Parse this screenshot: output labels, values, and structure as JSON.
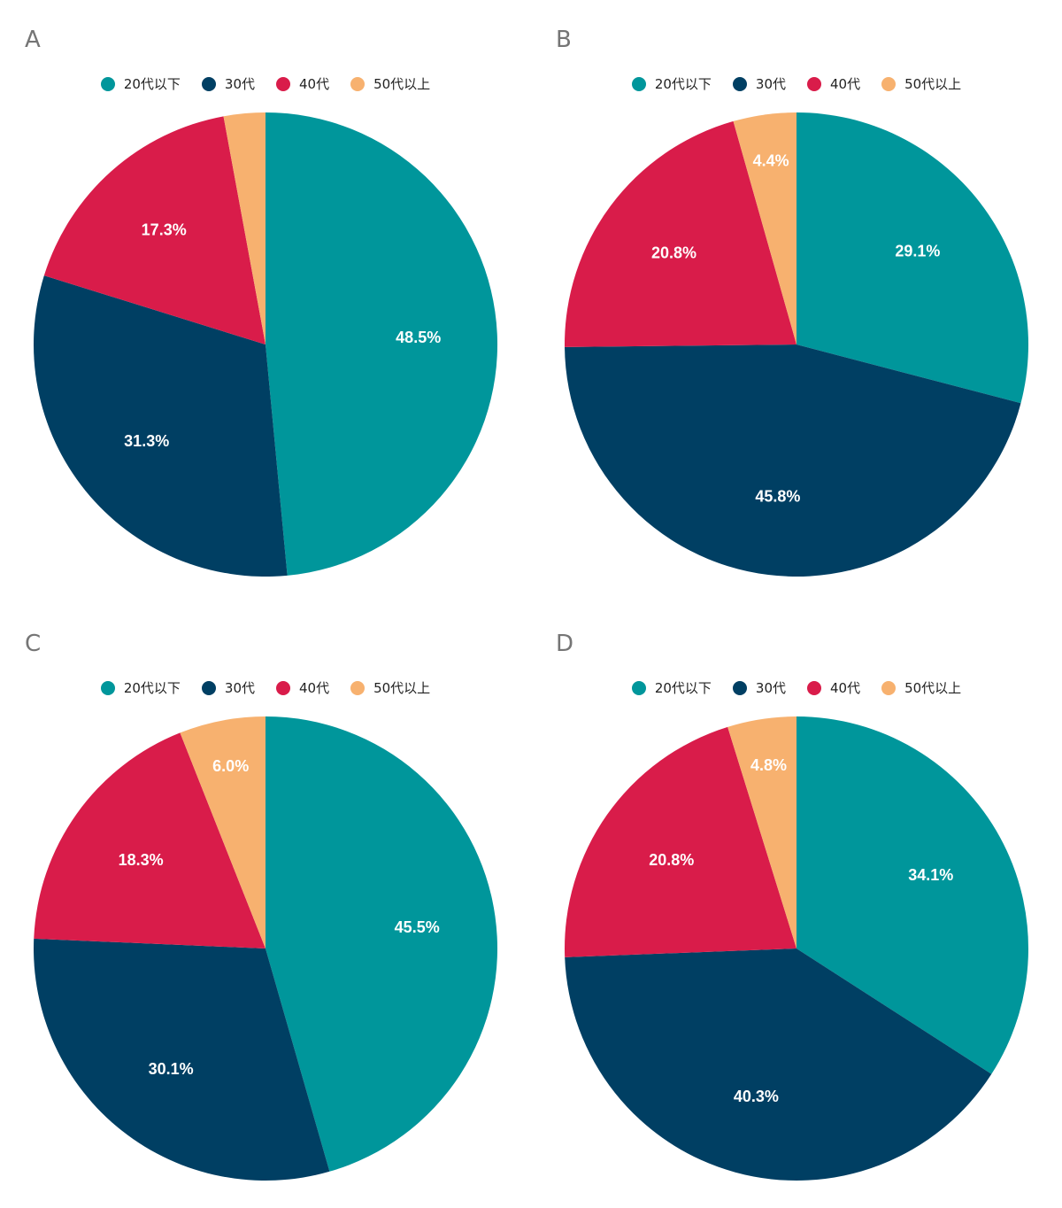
{
  "chart_data": [
    {
      "type": "pie",
      "title": "A",
      "categories": [
        "20代以下",
        "30代",
        "40代",
        "50代以上"
      ],
      "values": [
        48.5,
        31.3,
        17.3,
        2.9
      ],
      "labels": [
        "48.5%",
        "31.3%",
        "17.3%",
        ""
      ],
      "colors": [
        "#00969b",
        "#003f63",
        "#d91c4a",
        "#f7b16f"
      ],
      "legend_position": "top"
    },
    {
      "type": "pie",
      "title": "B",
      "categories": [
        "20代以下",
        "30代",
        "40代",
        "50代以上"
      ],
      "values": [
        29.1,
        45.8,
        20.8,
        4.4
      ],
      "labels": [
        "29.1%",
        "45.8%",
        "20.8%",
        "4.4%"
      ],
      "colors": [
        "#00969b",
        "#003f63",
        "#d91c4a",
        "#f7b16f"
      ],
      "legend_position": "top"
    },
    {
      "type": "pie",
      "title": "C",
      "categories": [
        "20代以下",
        "30代",
        "40代",
        "50代以上"
      ],
      "values": [
        45.5,
        30.1,
        18.3,
        6.0
      ],
      "labels": [
        "45.5%",
        "30.1%",
        "18.3%",
        "6.0%"
      ],
      "colors": [
        "#00969b",
        "#003f63",
        "#d91c4a",
        "#f7b16f"
      ],
      "legend_position": "top"
    },
    {
      "type": "pie",
      "title": "D",
      "categories": [
        "20代以下",
        "30代",
        "40代",
        "50代以上"
      ],
      "values": [
        34.1,
        40.3,
        20.8,
        4.8
      ],
      "labels": [
        "34.1%",
        "40.3%",
        "20.8%",
        "4.8%"
      ],
      "colors": [
        "#00969b",
        "#003f63",
        "#d91c4a",
        "#f7b16f"
      ],
      "legend_position": "top"
    }
  ]
}
